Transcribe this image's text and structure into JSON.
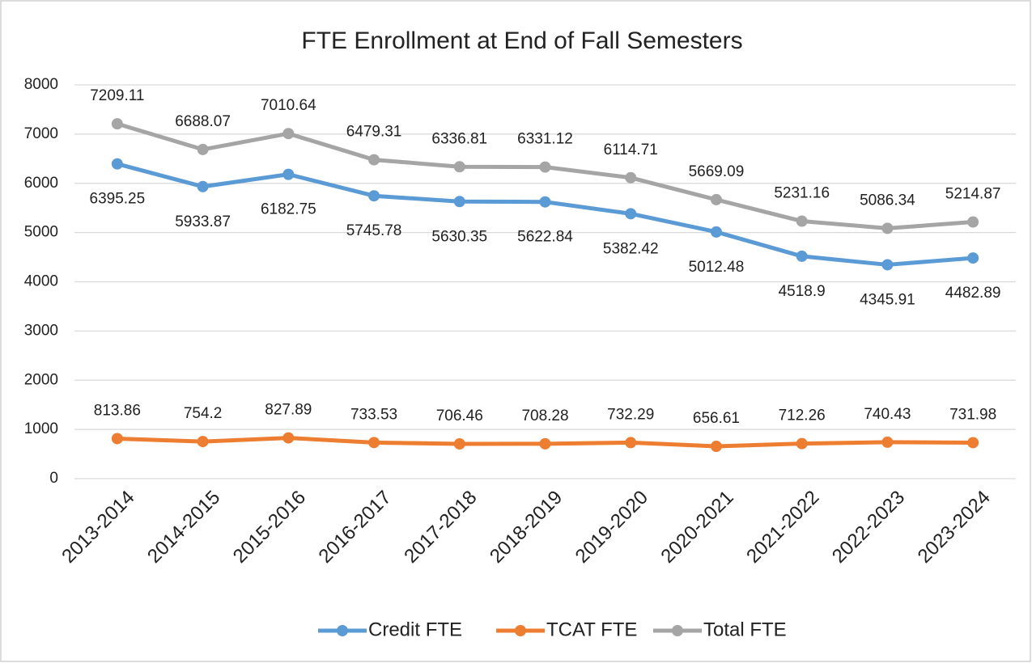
{
  "chart_data": {
    "type": "line",
    "title": "FTE Enrollment at End of Fall Semesters",
    "categories": [
      "2013-2014",
      "2014-2015",
      "2015-2016",
      "2016-2017",
      "2017-2018",
      "2018-2019",
      "2019-2020",
      "2020-2021",
      "2021-2022",
      "2022-2023",
      "2023-2024"
    ],
    "series": [
      {
        "name": "Credit FTE",
        "color": "#5b9bd5",
        "label_position": "below",
        "values": [
          6395.25,
          5933.87,
          6182.75,
          5745.78,
          5630.35,
          5622.84,
          5382.42,
          5012.48,
          4518.9,
          4345.91,
          4482.89
        ]
      },
      {
        "name": "TCAT FTE",
        "color": "#ed7d31",
        "label_position": "above",
        "values": [
          813.86,
          754.2,
          827.89,
          733.53,
          706.46,
          708.28,
          732.29,
          656.61,
          712.26,
          740.43,
          731.98
        ]
      },
      {
        "name": "Total FTE",
        "color": "#a5a5a5",
        "label_position": "above",
        "values": [
          7209.11,
          6688.07,
          7010.64,
          6479.31,
          6336.81,
          6331.12,
          6114.71,
          5669.09,
          5231.16,
          5086.34,
          5214.87
        ]
      }
    ],
    "ylim": [
      0,
      8000
    ],
    "yticks": [
      0,
      1000,
      2000,
      3000,
      4000,
      5000,
      6000,
      7000,
      8000
    ],
    "grid": true,
    "legend": "bottom"
  }
}
